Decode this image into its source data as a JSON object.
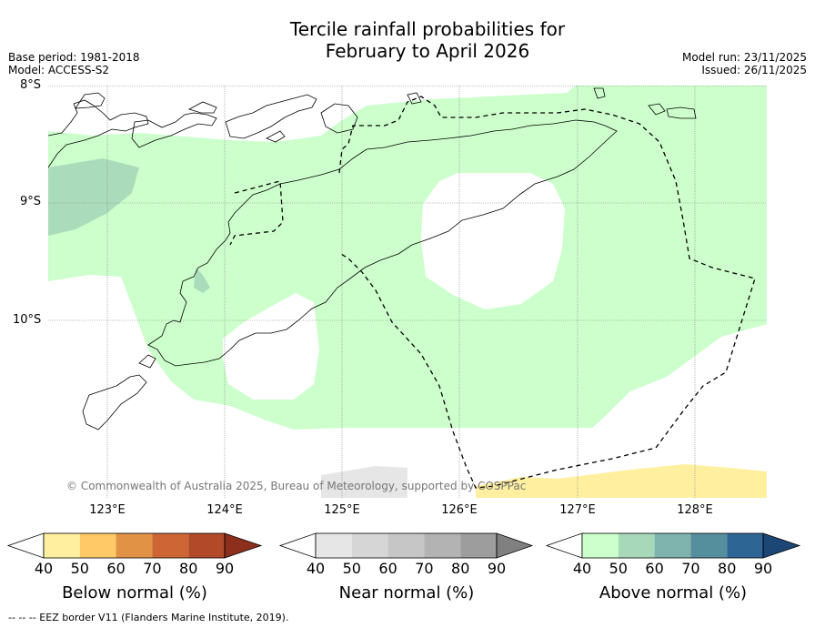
{
  "title_line1": "Tercile rainfall probabilities for",
  "title_line2": "February to April 2026",
  "base_period": "Base period: 1981-2018",
  "model": "Model: ACCESS-S2",
  "model_run": "Model run: 23/11/2025",
  "issued": "Issued: 26/11/2025",
  "lat_labels": [
    "8°S",
    "9°S",
    "10°S"
  ],
  "lon_labels": [
    "123°E",
    "124°E",
    "125°E",
    "126°E",
    "127°E",
    "128°E"
  ],
  "copyright": "© Commonwealth of Australia 2025, Bureau of Meteorology, supported by COSPPac",
  "colorbars": [
    {
      "title": "Below normal (%)",
      "ticks": [
        "40",
        "50",
        "60",
        "70",
        "80",
        "90"
      ],
      "colors": [
        "#ffef9f",
        "#fec966",
        "#e29244",
        "#cd6534",
        "#b24a2a",
        "#8c2f1c"
      ]
    },
    {
      "title": "Near normal (%)",
      "ticks": [
        "40",
        "50",
        "60",
        "70",
        "80",
        "90"
      ],
      "colors": [
        "#e6e6e6",
        "#d6d6d6",
        "#c6c6c6",
        "#b3b3b3",
        "#9d9d9d",
        "#808080"
      ]
    },
    {
      "title": "Above normal (%)",
      "ticks": [
        "40",
        "50",
        "60",
        "70",
        "80",
        "90"
      ],
      "colors": [
        "#ccffcc",
        "#a6d8b9",
        "#7fb3ae",
        "#558e9c",
        "#2d6595",
        "#1b4675"
      ]
    }
  ],
  "footer": "--  --  -- EEZ border V11 (Flanders Marine Institute, 2019)."
}
